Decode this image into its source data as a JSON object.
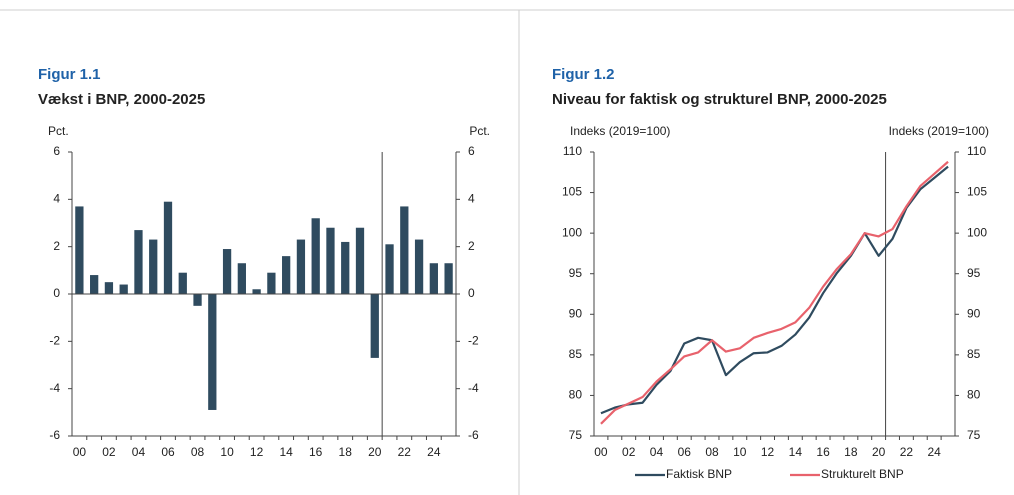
{
  "chart_data": [
    {
      "type": "bar",
      "label": "Figur 1.1",
      "title": "Vækst i BNP, 2000-2025",
      "y_label": "Pct.",
      "y2_label": "Pct.",
      "categories": [
        "00",
        null,
        "02",
        null,
        "04",
        null,
        "06",
        null,
        "08",
        null,
        "10",
        null,
        "12",
        null,
        "14",
        null,
        "16",
        null,
        "18",
        null,
        "20",
        null,
        "22",
        null,
        "24",
        null
      ],
      "values": [
        3.7,
        0.8,
        0.5,
        0.4,
        2.7,
        2.3,
        3.9,
        0.9,
        -0.5,
        -4.9,
        1.9,
        1.3,
        0.2,
        0.9,
        1.6,
        2.3,
        3.2,
        2.8,
        2.2,
        2.8,
        -2.7,
        2.1,
        3.7,
        2.3,
        1.3,
        1.3
      ],
      "color": "#2f4b5f",
      "ylim": [
        -6,
        6
      ],
      "yticks": [
        -6,
        -4,
        -2,
        0,
        2,
        4,
        6
      ],
      "y2lim": [
        -6,
        6
      ],
      "y2ticks": [
        -6,
        -4,
        -2,
        0,
        2,
        4,
        6
      ],
      "vline_after": "20"
    },
    {
      "type": "line",
      "label": "Figur 1.2",
      "title": "Niveau for faktisk og strukturel BNP, 2000-2025",
      "y_label": "Indeks (2019=100)",
      "y2_label": "Indeks (2019=100)",
      "categories": [
        "00",
        null,
        "02",
        null,
        "04",
        null,
        "06",
        null,
        "08",
        null,
        "10",
        null,
        "12",
        null,
        "14",
        null,
        "16",
        null,
        "18",
        null,
        "20",
        null,
        "22",
        null,
        "24",
        null
      ],
      "series": [
        {
          "name": "Faktisk BNP",
          "color": "#2f4b5f",
          "values": [
            77.8,
            78.5,
            78.9,
            79.1,
            81.3,
            83.0,
            86.4,
            87.1,
            86.8,
            82.5,
            84.1,
            85.2,
            85.3,
            86.1,
            87.5,
            89.6,
            92.6,
            95.1,
            97.2,
            100,
            97.2,
            99.3,
            103.1,
            105.4,
            106.8,
            108.2
          ]
        },
        {
          "name": "Strukturelt BNP",
          "color": "#e8626c",
          "values": [
            76.5,
            78.2,
            79.0,
            79.8,
            81.7,
            83.2,
            84.8,
            85.3,
            86.8,
            85.4,
            85.8,
            87.1,
            87.7,
            88.2,
            89.0,
            90.8,
            93.4,
            95.6,
            97.4,
            100,
            99.6,
            100.5,
            103.3,
            105.8,
            107.3,
            108.8
          ]
        }
      ],
      "ylim": [
        75,
        110
      ],
      "yticks": [
        75,
        80,
        85,
        90,
        95,
        100,
        105,
        110
      ],
      "y2lim": [
        75,
        110
      ],
      "y2ticks": [
        75,
        80,
        85,
        90,
        95,
        100,
        105,
        110
      ],
      "vline_after": "20",
      "legend": "bottom"
    }
  ]
}
